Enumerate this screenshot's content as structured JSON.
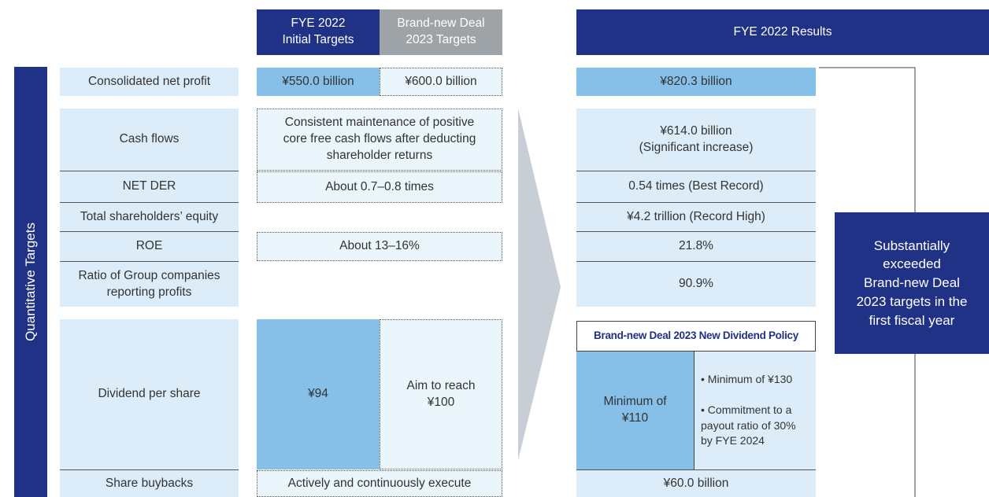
{
  "header": {
    "initial_targets": "FYE 2022\nInitial Targets",
    "new_deal_targets": "Brand-new Deal\n2023 Targets",
    "results": "FYE 2022 Results"
  },
  "side_label": "Quantitative Targets",
  "rows": [
    {
      "label": "Consolidated net profit",
      "initial": "¥550.0 billion",
      "new_deal": "¥600.0 billion",
      "result": "¥820.3 billion"
    },
    {
      "label": "Cash flows",
      "target": "Consistent maintenance of positive\ncore free cash flows after deducting\nshareholder returns",
      "result": "¥614.0 billion\n(Significant increase)"
    },
    {
      "label": "NET DER",
      "target": "About 0.7–0.8 times",
      "result": "0.54 times (Best Record)"
    },
    {
      "label": "Total shareholders’ equity",
      "result": "¥4.2 trillion (Record High)"
    },
    {
      "label": "ROE",
      "target": "About 13–16%",
      "result": "21.8%"
    },
    {
      "label": "Ratio of Group companies\nreporting profits",
      "result": "90.9%"
    },
    {
      "label": "Dividend per share",
      "initial": "¥94",
      "new_deal": "Aim to reach\n¥100"
    },
    {
      "label": "Share buybacks",
      "target": "Actively and continuously execute",
      "result": "¥60.0 billion"
    }
  ],
  "dividend_policy": {
    "title": "Brand-new Deal 2023 New Dividend Policy",
    "minimum": "Minimum of\n¥110",
    "bullets": [
      "Minimum of ¥130",
      "Commitment to a\npayout ratio of 30%\nby FYE 2024"
    ]
  },
  "conclusion": "Substantially\nexceeded\nBrand-new Deal\n2023 targets in the\nfirst fiscal year"
}
